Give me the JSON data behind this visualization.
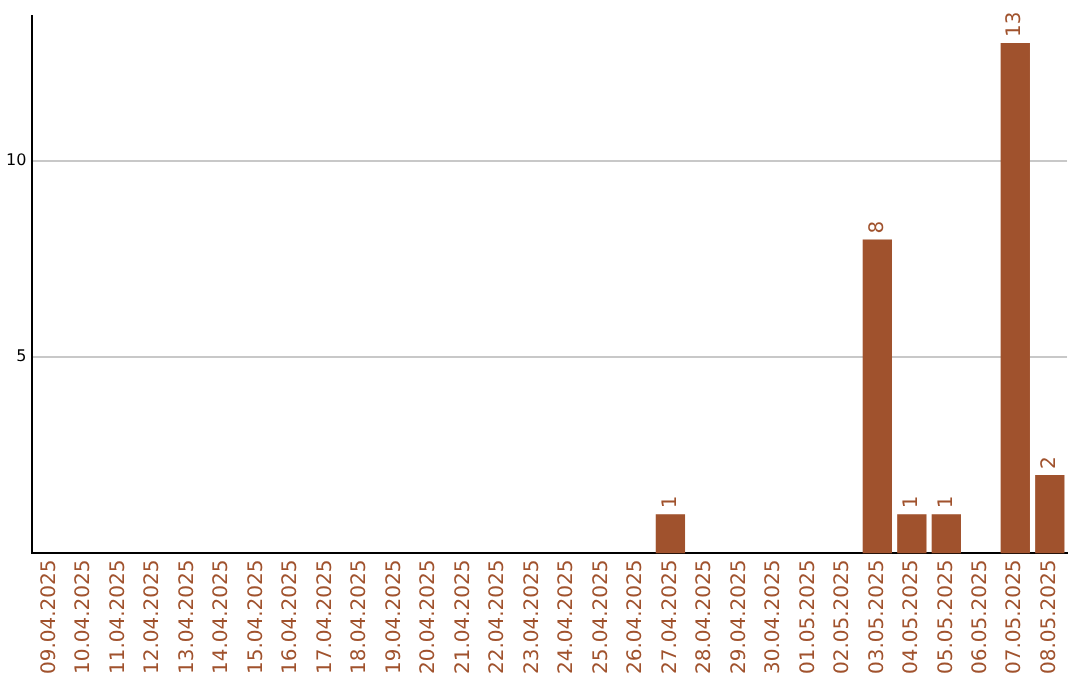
{
  "chart_data": {
    "type": "bar",
    "categories": [
      "09.04.2025",
      "10.04.2025",
      "11.04.2025",
      "12.04.2025",
      "13.04.2025",
      "14.04.2025",
      "15.04.2025",
      "16.04.2025",
      "17.04.2025",
      "18.04.2025",
      "19.04.2025",
      "20.04.2025",
      "21.04.2025",
      "22.04.2025",
      "23.04.2025",
      "24.04.2025",
      "25.04.2025",
      "26.04.2025",
      "27.04.2025",
      "28.04.2025",
      "29.04.2025",
      "30.04.2025",
      "01.05.2025",
      "02.05.2025",
      "03.05.2025",
      "04.05.2025",
      "05.05.2025",
      "06.05.2025",
      "07.05.2025",
      "08.05.2025"
    ],
    "values": [
      0,
      0,
      0,
      0,
      0,
      0,
      0,
      0,
      0,
      0,
      0,
      0,
      0,
      0,
      0,
      0,
      0,
      0,
      1,
      0,
      0,
      0,
      0,
      0,
      8,
      1,
      1,
      0,
      13,
      2
    ],
    "value_labels": [
      null,
      null,
      null,
      null,
      null,
      null,
      null,
      null,
      null,
      null,
      null,
      null,
      null,
      null,
      null,
      null,
      null,
      null,
      "1",
      null,
      null,
      null,
      null,
      null,
      "8",
      "1",
      "1",
      null,
      "13",
      "2"
    ],
    "color": "#a0522d",
    "ylim": [
      0,
      13.7
    ],
    "yticks": [
      5,
      10
    ],
    "grid": "y"
  }
}
